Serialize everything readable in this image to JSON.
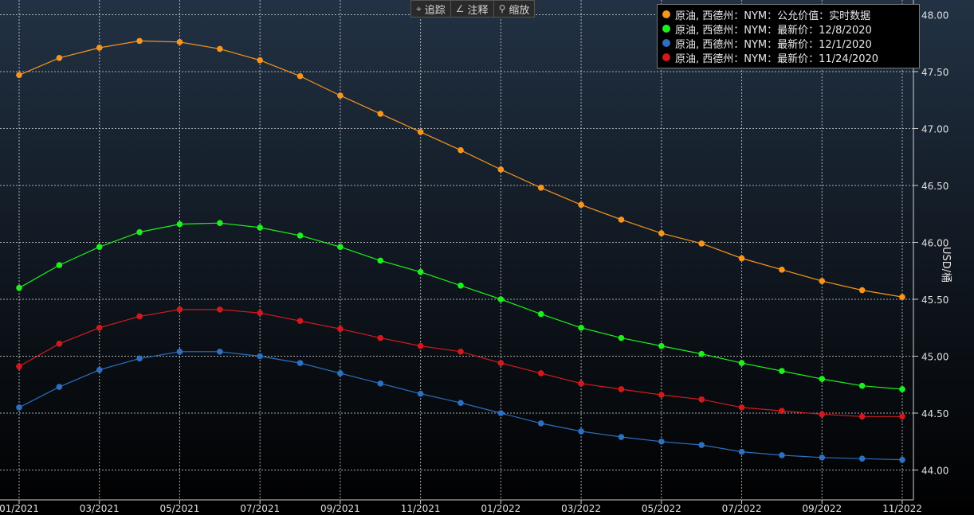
{
  "toolbar": {
    "track_label": "追踪",
    "annotate_label": "注释",
    "zoom_label": "缩放"
  },
  "chart_data": {
    "type": "line",
    "xlabel": "",
    "ylabel": "USD/桶",
    "ylim": [
      43.72,
      48.15
    ],
    "yticks": [
      44.0,
      44.5,
      45.0,
      45.5,
      46.0,
      46.5,
      47.0,
      47.5,
      48.0
    ],
    "ytick_labels": [
      "44.00",
      "44.50",
      "45.00",
      "45.50",
      "46.00",
      "46.50",
      "47.00",
      "47.50",
      "48.00"
    ],
    "xtick_labels": [
      "01/2021",
      "03/2021",
      "05/2021",
      "07/2021",
      "09/2021",
      "11/2021",
      "01/2022",
      "03/2022",
      "05/2022",
      "07/2022",
      "09/2022",
      "11/2022"
    ],
    "x": [
      "01/2021",
      "02/2021",
      "03/2021",
      "04/2021",
      "05/2021",
      "06/2021",
      "07/2021",
      "08/2021",
      "09/2021",
      "10/2021",
      "11/2021",
      "12/2021",
      "01/2022",
      "02/2022",
      "03/2022",
      "04/2022",
      "05/2022",
      "06/2022",
      "07/2022",
      "08/2022",
      "09/2022",
      "10/2022",
      "11/2022"
    ],
    "grid": true,
    "legend_position": "top-right",
    "series": [
      {
        "name": "原油, 西德州：NYM：公允价值：实时数据",
        "color": "#f7951d",
        "values": [
          47.47,
          47.62,
          47.71,
          47.77,
          47.76,
          47.7,
          47.6,
          47.46,
          47.29,
          47.13,
          46.97,
          46.81,
          46.64,
          46.48,
          46.33,
          46.2,
          46.08,
          45.99,
          45.86,
          45.76,
          45.66,
          45.58,
          45.52
        ]
      },
      {
        "name": "原油, 西德州：NYM：最新价：12/8/2020",
        "color": "#1df01d",
        "values": [
          45.6,
          45.8,
          45.96,
          46.09,
          46.16,
          46.17,
          46.13,
          46.06,
          45.96,
          45.84,
          45.74,
          45.62,
          45.5,
          45.37,
          45.25,
          45.16,
          45.09,
          45.02,
          44.94,
          44.87,
          44.8,
          44.74,
          44.71
        ]
      },
      {
        "name": "原油, 西德州：NYM：最新价：12/1/2020",
        "color": "#2d6fc1",
        "values": [
          44.55,
          44.73,
          44.88,
          44.98,
          45.04,
          45.04,
          45.0,
          44.94,
          44.85,
          44.76,
          44.67,
          44.59,
          44.5,
          44.41,
          44.34,
          44.29,
          44.25,
          44.22,
          44.16,
          44.13,
          44.11,
          44.1,
          44.09
        ]
      },
      {
        "name": "原油, 西德州：NYM：最新价：11/24/2020",
        "color": "#d4191d",
        "values": [
          44.91,
          45.11,
          45.25,
          45.35,
          45.41,
          45.41,
          45.38,
          45.31,
          45.24,
          45.16,
          45.09,
          45.04,
          44.94,
          44.85,
          44.76,
          44.71,
          44.66,
          44.62,
          44.55,
          44.52,
          44.49,
          44.47,
          44.47
        ]
      }
    ]
  }
}
